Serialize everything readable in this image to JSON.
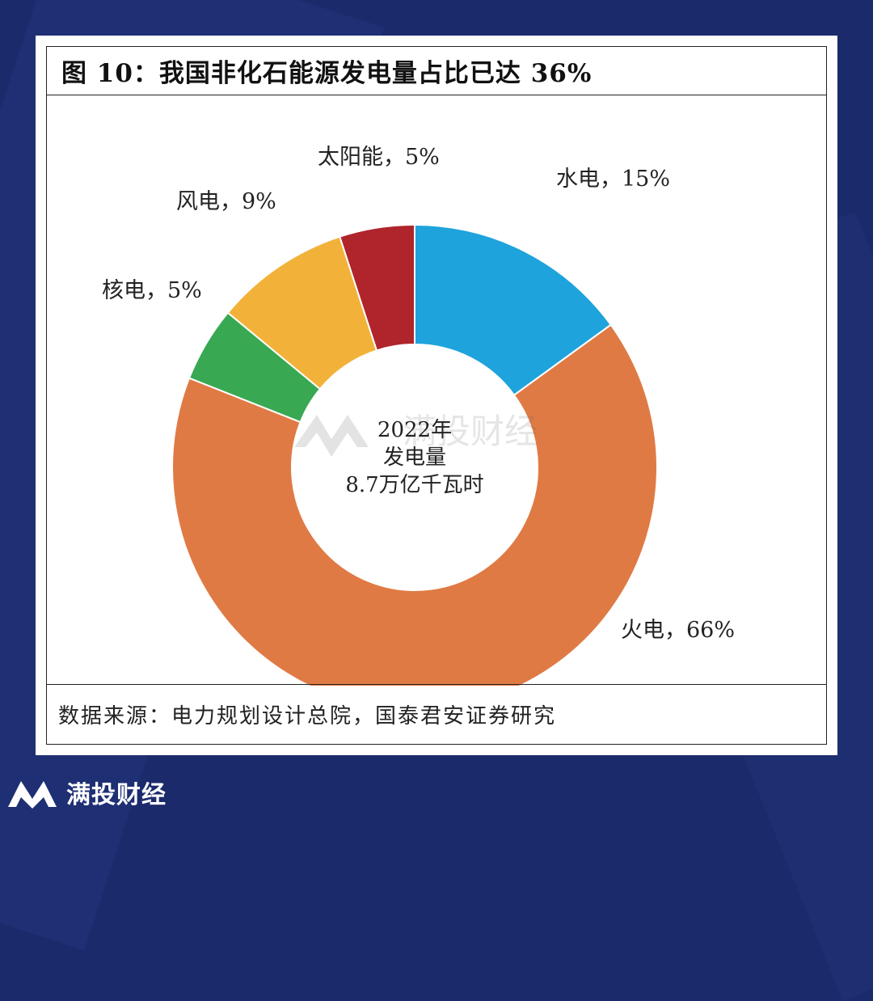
{
  "chart_data": {
    "type": "pie",
    "title": "图 10：我国非化石能源发电量占比已达 36%",
    "center_label": [
      "2022年",
      "发电量",
      "8.7万亿千瓦时"
    ],
    "slices": [
      {
        "label": "水电，15%",
        "name": "水电",
        "value": 15,
        "color": "#1fa3dc"
      },
      {
        "label": "火电，66%",
        "name": "火电",
        "value": 66,
        "color": "#e07a44"
      },
      {
        "label": "核电，5%",
        "name": "核电",
        "value": 5,
        "color": "#39a853"
      },
      {
        "label": "风电，9%",
        "name": "风电",
        "value": 9,
        "color": "#f2b23a"
      },
      {
        "label": "太阳能，5%",
        "name": "太阳能",
        "value": 5,
        "color": "#b0242c"
      }
    ],
    "source": "数据来源：电力规划设计总院，国泰君安证券研究"
  },
  "watermark": "满投财经",
  "footer": {
    "brand": "满投财经"
  }
}
